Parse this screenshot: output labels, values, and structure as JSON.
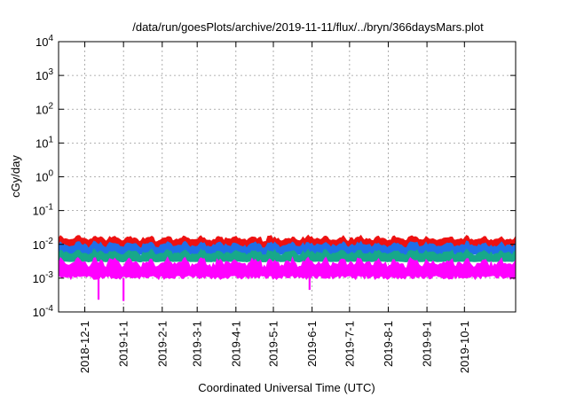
{
  "chart_data": {
    "type": "area",
    "title": "/data/run/goesPlots/archive/2019-11-11/flux/../bryn/366daysMars.plot",
    "xlabel": "Coordinated Universal Time (UTC)",
    "ylabel": "cGy/day",
    "yscale": "log",
    "ylim": [
      0.0001,
      10000
    ],
    "y_ticks": [
      {
        "base": "10",
        "exp": "-4",
        "value": 0.0001
      },
      {
        "base": "10",
        "exp": "-3",
        "value": 0.001
      },
      {
        "base": "10",
        "exp": "-2",
        "value": 0.01
      },
      {
        "base": "10",
        "exp": "-1",
        "value": 0.1
      },
      {
        "base": "10",
        "exp": "0",
        "value": 1
      },
      {
        "base": "10",
        "exp": "1",
        "value": 10
      },
      {
        "base": "10",
        "exp": "2",
        "value": 100
      },
      {
        "base": "10",
        "exp": "3",
        "value": 1000
      },
      {
        "base": "10",
        "exp": "4",
        "value": 10000
      }
    ],
    "xlim": [
      "2018-11-10",
      "2019-11-11"
    ],
    "x_ticks": [
      "2018-12-1",
      "2019-1-1",
      "2019-2-1",
      "2019-3-1",
      "2019-4-1",
      "2019-5-1",
      "2019-6-1",
      "2019-7-1",
      "2019-8-1",
      "2019-9-1",
      "2019-10-1"
    ],
    "x_tick_dates": [
      "2018-12-01",
      "2019-01-01",
      "2019-02-01",
      "2019-03-01",
      "2019-04-01",
      "2019-05-01",
      "2019-06-01",
      "2019-07-01",
      "2019-08-01",
      "2019-09-01",
      "2019-10-01"
    ],
    "grid": true,
    "legend": "none",
    "series": [
      {
        "color": "#ee1111",
        "approx_range": [
          0.008,
          0.018
        ]
      },
      {
        "color": "#1f6fe8",
        "approx_range": [
          0.005,
          0.012
        ]
      },
      {
        "color": "#17a88a",
        "approx_range": [
          0.003,
          0.007
        ]
      },
      {
        "color": "#ff00ff",
        "approx_range": [
          0.001,
          0.004
        ]
      }
    ],
    "dips": [
      {
        "date": "2018-12-12",
        "value": 0.00023
      },
      {
        "date": "2019-01-01",
        "value": 0.00021
      },
      {
        "date": "2019-05-30",
        "value": 0.00045
      }
    ]
  }
}
